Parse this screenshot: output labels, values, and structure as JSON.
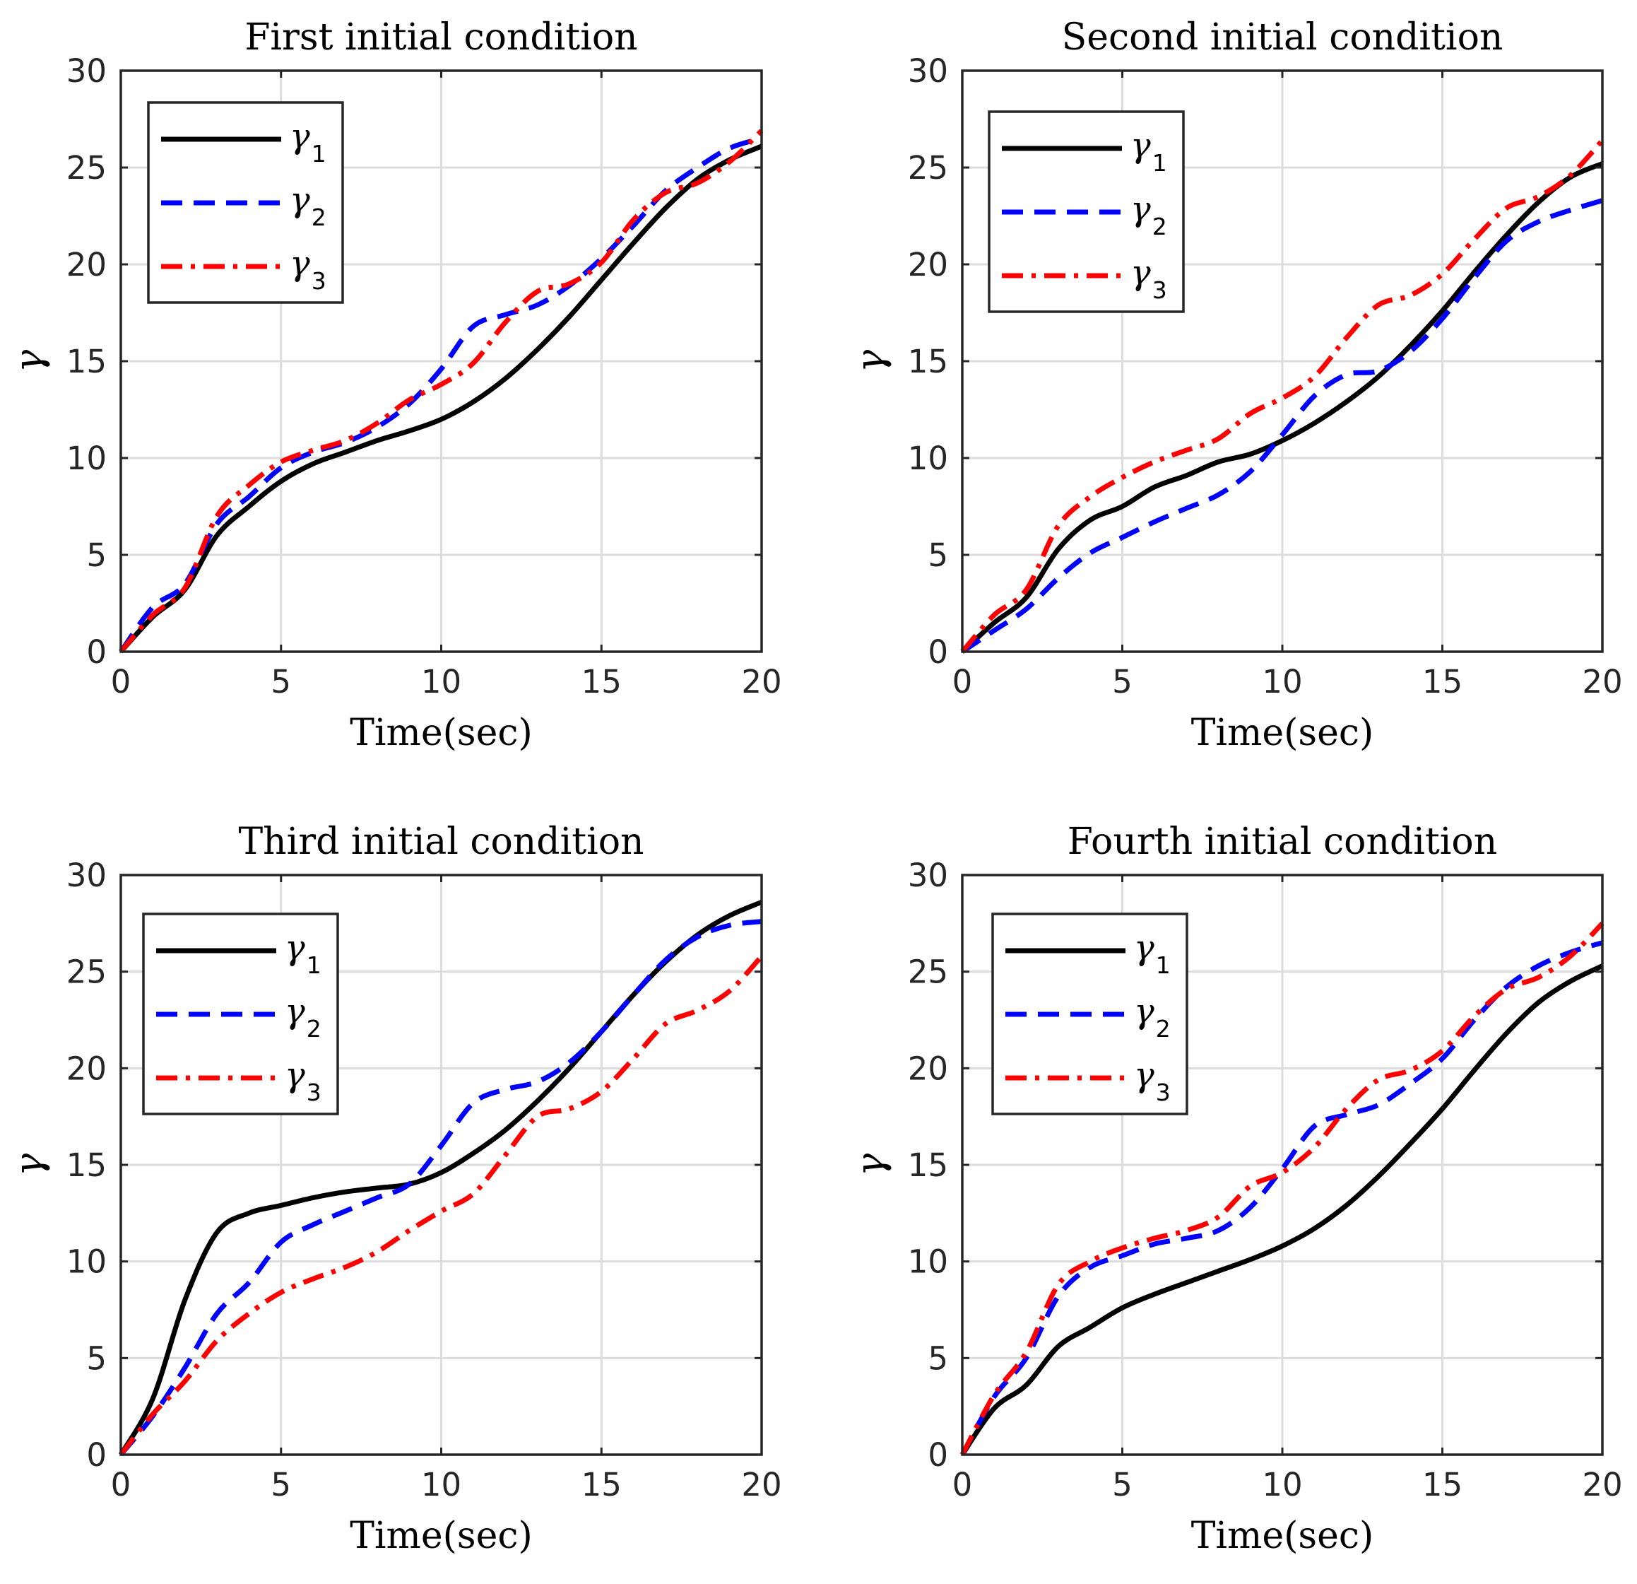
{
  "chart_data": [
    {
      "type": "line",
      "title": "First initial condition",
      "xlabel": "Time(sec)",
      "ylabel": "γ",
      "xlim": [
        0,
        20
      ],
      "ylim": [
        0,
        30
      ],
      "xticks": [
        "0",
        "5",
        "10",
        "15",
        "20"
      ],
      "yticks": [
        "0",
        "5",
        "10",
        "15",
        "20",
        "25",
        "30"
      ],
      "grid": true,
      "legend_position": "top-left",
      "x": [
        0,
        1,
        2,
        3,
        4,
        5,
        6,
        7,
        8,
        9,
        10,
        11,
        12,
        13,
        14,
        15,
        16,
        17,
        18,
        19,
        20
      ],
      "series": [
        {
          "name": "γ",
          "sub": "1",
          "color": "#000000",
          "style": "solid",
          "values": [
            0,
            1.8,
            3.2,
            6.0,
            7.5,
            8.8,
            9.7,
            10.3,
            10.9,
            11.4,
            12.0,
            12.9,
            14.1,
            15.6,
            17.3,
            19.2,
            21.1,
            22.9,
            24.4,
            25.4,
            26.1
          ]
        },
        {
          "name": "γ",
          "sub": "2",
          "color": "#0000ff",
          "style": "dashed",
          "values": [
            0,
            2.3,
            3.5,
            6.6,
            8.0,
            9.5,
            10.3,
            10.8,
            11.6,
            12.8,
            14.6,
            16.8,
            17.4,
            17.9,
            18.9,
            20.3,
            22.0,
            23.8,
            25.0,
            26.0,
            26.5
          ]
        },
        {
          "name": "γ",
          "sub": "3",
          "color": "#ff0000",
          "style": "dashdot",
          "values": [
            0,
            1.9,
            3.3,
            7.0,
            8.6,
            9.8,
            10.4,
            10.9,
            11.8,
            13.0,
            13.8,
            14.9,
            17.0,
            18.6,
            19.0,
            20.1,
            22.3,
            23.7,
            24.2,
            25.3,
            26.9
          ]
        }
      ]
    },
    {
      "type": "line",
      "title": "Second initial condition",
      "xlabel": "Time(sec)",
      "ylabel": "γ",
      "xlim": [
        0,
        20
      ],
      "ylim": [
        0,
        30
      ],
      "xticks": [
        "0",
        "5",
        "10",
        "15",
        "20"
      ],
      "yticks": [
        "0",
        "5",
        "10",
        "15",
        "20",
        "25",
        "30"
      ],
      "grid": true,
      "legend_position": "top-left",
      "x": [
        0,
        1,
        2,
        3,
        4,
        5,
        6,
        7,
        8,
        9,
        10,
        11,
        12,
        13,
        14,
        15,
        16,
        17,
        18,
        19,
        20
      ],
      "series": [
        {
          "name": "γ",
          "sub": "1",
          "color": "#000000",
          "style": "solid",
          "values": [
            0,
            1.5,
            2.8,
            5.3,
            6.8,
            7.5,
            8.5,
            9.1,
            9.8,
            10.2,
            10.9,
            11.8,
            12.9,
            14.2,
            15.8,
            17.6,
            19.6,
            21.5,
            23.2,
            24.5,
            25.2
          ]
        },
        {
          "name": "γ",
          "sub": "2",
          "color": "#0000ff",
          "style": "dashed",
          "values": [
            0,
            1.1,
            2.2,
            3.8,
            5.1,
            5.9,
            6.7,
            7.4,
            8.1,
            9.3,
            11.2,
            13.2,
            14.3,
            14.5,
            15.5,
            17.2,
            19.3,
            21.2,
            22.2,
            22.8,
            23.3
          ]
        },
        {
          "name": "γ",
          "sub": "3",
          "color": "#ff0000",
          "style": "dashdot",
          "values": [
            0,
            1.9,
            3.2,
            6.5,
            8.0,
            9.0,
            9.8,
            10.4,
            11.0,
            12.3,
            13.1,
            14.2,
            16.2,
            17.9,
            18.4,
            19.5,
            21.3,
            22.9,
            23.5,
            24.6,
            26.4
          ]
        }
      ]
    },
    {
      "type": "line",
      "title": "Third initial condition",
      "xlabel": "Time(sec)",
      "ylabel": "γ",
      "xlim": [
        0,
        20
      ],
      "ylim": [
        0,
        30
      ],
      "xticks": [
        "0",
        "5",
        "10",
        "15",
        "20"
      ],
      "yticks": [
        "0",
        "5",
        "10",
        "15",
        "20",
        "25",
        "30"
      ],
      "grid": true,
      "legend_position": "top-left",
      "x": [
        0,
        1,
        2,
        3,
        4,
        5,
        6,
        7,
        8,
        9,
        10,
        11,
        12,
        13,
        14,
        15,
        16,
        17,
        18,
        19,
        20
      ],
      "series": [
        {
          "name": "γ",
          "sub": "1",
          "color": "#000000",
          "style": "solid",
          "values": [
            0,
            2.9,
            8.0,
            11.5,
            12.5,
            12.9,
            13.3,
            13.6,
            13.8,
            14.0,
            14.6,
            15.6,
            16.8,
            18.3,
            20.0,
            21.9,
            23.8,
            25.5,
            26.9,
            27.9,
            28.6
          ]
        },
        {
          "name": "γ",
          "sub": "2",
          "color": "#0000ff",
          "style": "dashed",
          "values": [
            0,
            2.0,
            4.5,
            7.3,
            8.9,
            11.0,
            11.9,
            12.6,
            13.3,
            14.0,
            16.0,
            18.2,
            18.9,
            19.3,
            20.3,
            21.9,
            23.8,
            25.6,
            26.8,
            27.4,
            27.6
          ]
        },
        {
          "name": "γ",
          "sub": "3",
          "color": "#ff0000",
          "style": "dashdot",
          "values": [
            0,
            2.1,
            3.8,
            5.9,
            7.3,
            8.4,
            9.1,
            9.7,
            10.5,
            11.6,
            12.6,
            13.5,
            15.5,
            17.5,
            17.9,
            18.8,
            20.5,
            22.3,
            23.0,
            24.0,
            25.8
          ]
        }
      ]
    },
    {
      "type": "line",
      "title": "Fourth initial condition",
      "xlabel": "Time(sec)",
      "ylabel": "γ",
      "xlim": [
        0,
        20
      ],
      "ylim": [
        0,
        30
      ],
      "xticks": [
        "0",
        "5",
        "10",
        "15",
        "20"
      ],
      "yticks": [
        "0",
        "5",
        "10",
        "15",
        "20",
        "25",
        "30"
      ],
      "grid": true,
      "legend_position": "top-left",
      "x": [
        0,
        1,
        2,
        3,
        4,
        5,
        6,
        7,
        8,
        9,
        10,
        11,
        12,
        13,
        14,
        15,
        16,
        17,
        18,
        19,
        20
      ],
      "series": [
        {
          "name": "γ",
          "sub": "1",
          "color": "#000000",
          "style": "solid",
          "values": [
            0,
            2.4,
            3.6,
            5.6,
            6.6,
            7.6,
            8.3,
            8.9,
            9.5,
            10.1,
            10.8,
            11.7,
            12.9,
            14.4,
            16.1,
            17.9,
            19.9,
            21.8,
            23.4,
            24.5,
            25.3
          ]
        },
        {
          "name": "γ",
          "sub": "2",
          "color": "#0000ff",
          "style": "dashed",
          "values": [
            0,
            3.0,
            5.0,
            8.2,
            9.7,
            10.3,
            10.9,
            11.2,
            11.6,
            12.8,
            14.8,
            17.0,
            17.6,
            18.1,
            19.2,
            20.5,
            22.5,
            24.2,
            25.3,
            26.0,
            26.5
          ]
        },
        {
          "name": "γ",
          "sub": "3",
          "color": "#ff0000",
          "style": "dashdot",
          "values": [
            0,
            3.1,
            5.3,
            8.8,
            10.0,
            10.7,
            11.2,
            11.6,
            12.3,
            13.9,
            14.6,
            15.9,
            17.9,
            19.4,
            19.9,
            20.9,
            22.7,
            24.1,
            24.7,
            25.8,
            27.5
          ]
        }
      ]
    }
  ]
}
